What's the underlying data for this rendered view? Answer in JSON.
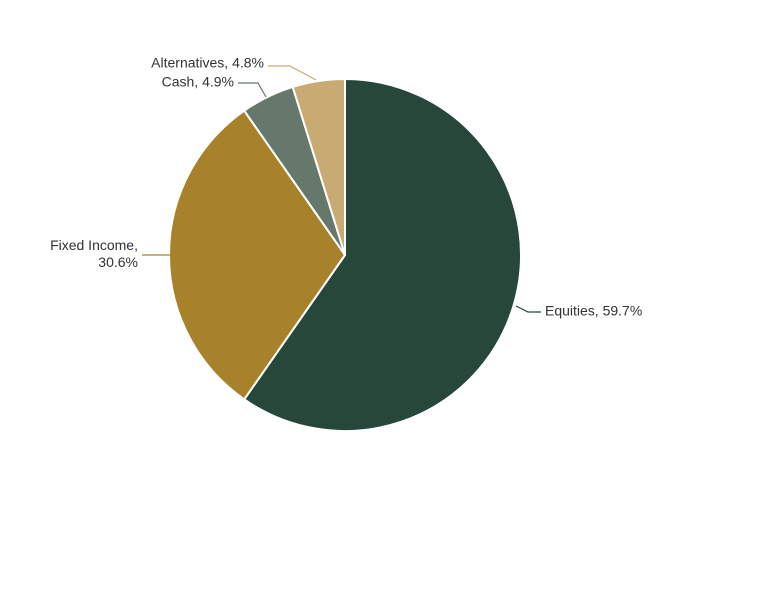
{
  "chart_data": {
    "type": "pie",
    "values": [
      59.7,
      30.6,
      4.9,
      4.8
    ],
    "value_labels": [
      "Equities, 59.7%",
      "Fixed Income, 30.6%",
      "Cash, 4.9%",
      "Alternatives, 4.8%"
    ],
    "colors": [
      "#26473a",
      "#a8822a",
      "#66786c",
      "#c8ab72"
    ]
  }
}
